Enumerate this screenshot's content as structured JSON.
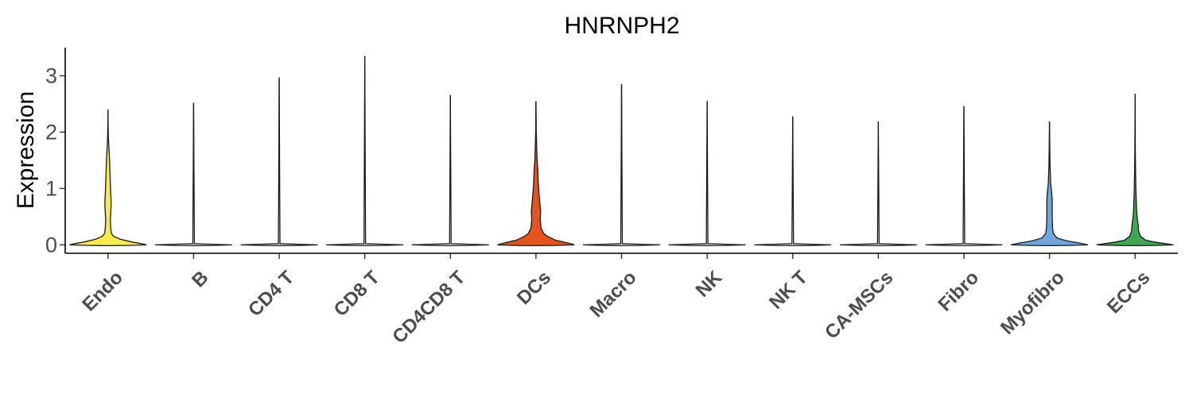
{
  "chart_data": {
    "type": "violin",
    "title": "HNRNPH2",
    "xlabel": "",
    "ylabel": "Expression",
    "ylim": [
      -0.15,
      3.5
    ],
    "yticks": [
      0,
      1,
      2,
      3
    ],
    "grid": false,
    "categories": [
      "Endo",
      "B",
      "CD4 T",
      "CD8 T",
      "CD4CD8 T",
      "DCs",
      "Macro",
      "NK",
      "NK T",
      "CA-MSCs",
      "Fibro",
      "Myofibro",
      "ECCs"
    ],
    "colors": [
      "#F7EC4A",
      "#ffffff",
      "#ffffff",
      "#ffffff",
      "#ffffff",
      "#E6531D",
      "#ffffff",
      "#ffffff",
      "#ffffff",
      "#ffffff",
      "#ffffff",
      "#6FA6DC",
      "#3FA653"
    ],
    "max_expression": [
      2.4,
      2.52,
      2.97,
      3.35,
      2.66,
      2.55,
      2.85,
      2.55,
      2.28,
      2.19,
      2.46,
      2.19,
      2.68
    ],
    "density_profiles": [
      [
        [
          0,
          1.0
        ],
        [
          0.02,
          0.88
        ],
        [
          0.05,
          0.62
        ],
        [
          0.1,
          0.32
        ],
        [
          0.15,
          0.15
        ],
        [
          0.2,
          0.09
        ],
        [
          0.3,
          0.07
        ],
        [
          0.45,
          0.06
        ],
        [
          0.55,
          0.07
        ],
        [
          0.7,
          0.08
        ],
        [
          0.8,
          0.08
        ],
        [
          0.9,
          0.07
        ],
        [
          1.1,
          0.06
        ],
        [
          1.3,
          0.05
        ],
        [
          1.5,
          0.04
        ],
        [
          1.7,
          0.025
        ],
        [
          1.9,
          0.01
        ],
        [
          2.1,
          0.004
        ],
        [
          2.4,
          0
        ]
      ],
      [
        [
          0,
          1.0
        ],
        [
          0.01,
          0.5
        ],
        [
          0.02,
          0.02
        ],
        [
          2.52,
          0
        ]
      ],
      [
        [
          0,
          1.0
        ],
        [
          0.01,
          0.5
        ],
        [
          0.02,
          0.02
        ],
        [
          2.97,
          0
        ]
      ],
      [
        [
          0,
          1.0
        ],
        [
          0.01,
          0.5
        ],
        [
          0.02,
          0.02
        ],
        [
          3.35,
          0
        ]
      ],
      [
        [
          0,
          1.0
        ],
        [
          0.01,
          0.5
        ],
        [
          0.02,
          0.02
        ],
        [
          2.66,
          0
        ]
      ],
      [
        [
          0,
          1.0
        ],
        [
          0.03,
          0.85
        ],
        [
          0.08,
          0.52
        ],
        [
          0.15,
          0.3
        ],
        [
          0.2,
          0.2
        ],
        [
          0.3,
          0.13
        ],
        [
          0.45,
          0.11
        ],
        [
          0.6,
          0.12
        ],
        [
          0.75,
          0.1
        ],
        [
          0.9,
          0.08
        ],
        [
          1.1,
          0.06
        ],
        [
          1.3,
          0.05
        ],
        [
          1.5,
          0.03
        ],
        [
          1.7,
          0.02
        ],
        [
          2.0,
          0.008
        ],
        [
          2.55,
          0
        ]
      ],
      [
        [
          0,
          1.0
        ],
        [
          0.01,
          0.5
        ],
        [
          0.02,
          0.02
        ],
        [
          2.85,
          0
        ]
      ],
      [
        [
          0,
          1.0
        ],
        [
          0.01,
          0.5
        ],
        [
          0.02,
          0.02
        ],
        [
          2.55,
          0
        ]
      ],
      [
        [
          0,
          1.0
        ],
        [
          0.01,
          0.5
        ],
        [
          0.02,
          0.02
        ],
        [
          2.28,
          0
        ]
      ],
      [
        [
          0,
          1.0
        ],
        [
          0.01,
          0.5
        ],
        [
          0.02,
          0.02
        ],
        [
          2.19,
          0
        ]
      ],
      [
        [
          0,
          1.0
        ],
        [
          0.01,
          0.5
        ],
        [
          0.02,
          0.02
        ],
        [
          2.46,
          0
        ]
      ],
      [
        [
          0,
          1.0
        ],
        [
          0.03,
          0.8
        ],
        [
          0.07,
          0.45
        ],
        [
          0.12,
          0.2
        ],
        [
          0.2,
          0.1
        ],
        [
          0.3,
          0.08
        ],
        [
          0.45,
          0.07
        ],
        [
          0.6,
          0.07
        ],
        [
          0.8,
          0.07
        ],
        [
          0.9,
          0.06
        ],
        [
          1.1,
          0.03
        ],
        [
          1.4,
          0.015
        ],
        [
          1.8,
          0.006
        ],
        [
          2.19,
          0
        ]
      ],
      [
        [
          0,
          1.0
        ],
        [
          0.02,
          0.8
        ],
        [
          0.05,
          0.5
        ],
        [
          0.08,
          0.28
        ],
        [
          0.15,
          0.14
        ],
        [
          0.25,
          0.09
        ],
        [
          0.35,
          0.08
        ],
        [
          0.45,
          0.06
        ],
        [
          0.6,
          0.04
        ],
        [
          0.8,
          0.03
        ],
        [
          1.0,
          0.02
        ],
        [
          1.3,
          0.013
        ],
        [
          1.7,
          0.006
        ],
        [
          2.1,
          0.003
        ],
        [
          2.68,
          0
        ]
      ]
    ]
  }
}
